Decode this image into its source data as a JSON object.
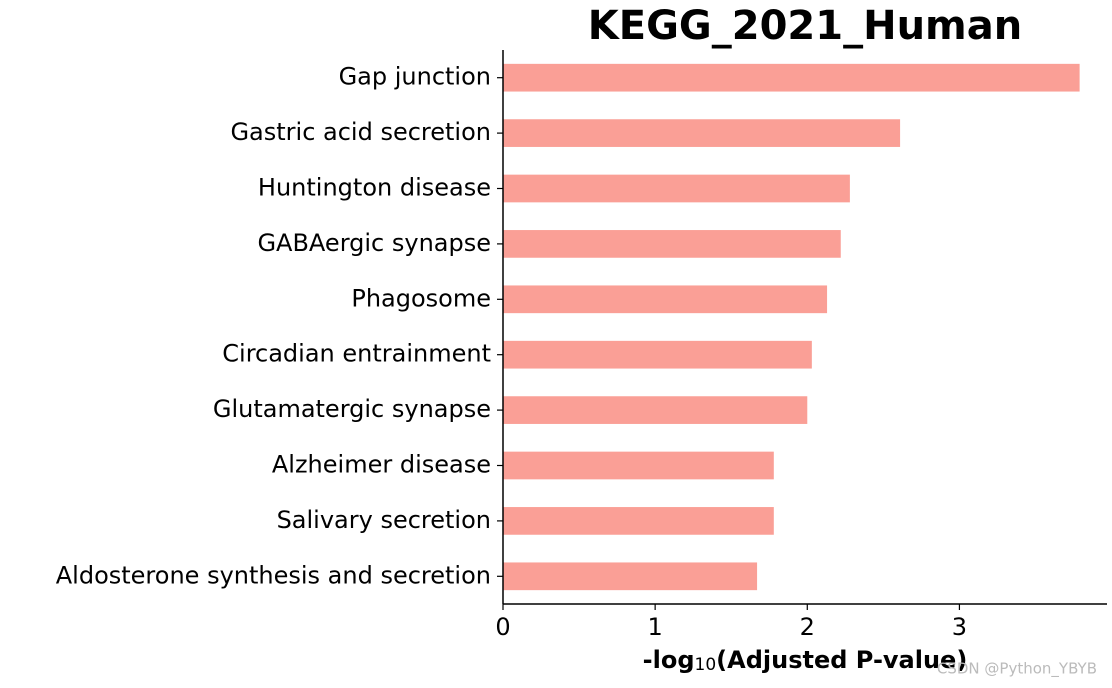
{
  "chart_data": {
    "type": "barh",
    "title": "KEGG_2021_Human",
    "xlabel_parts": [
      "-log",
      "10",
      "(Adjusted P-value)"
    ],
    "categories": [
      "Gap junction",
      "Gastric acid secretion",
      "Huntington disease",
      "GABAergic synapse",
      "Phagosome",
      "Circadian entrainment",
      "Glutamatergic synapse",
      "Alzheimer disease",
      "Salivary secretion",
      "Aldosterone synthesis and secretion"
    ],
    "values": [
      3.79,
      2.61,
      2.28,
      2.22,
      2.13,
      2.03,
      2.0,
      1.78,
      1.78,
      1.67
    ],
    "color": "#fa9f96",
    "xlim": [
      0,
      3.97
    ],
    "xticks": [
      0,
      1,
      2,
      3
    ],
    "watermark": "CSDN @Python_YBYB"
  }
}
